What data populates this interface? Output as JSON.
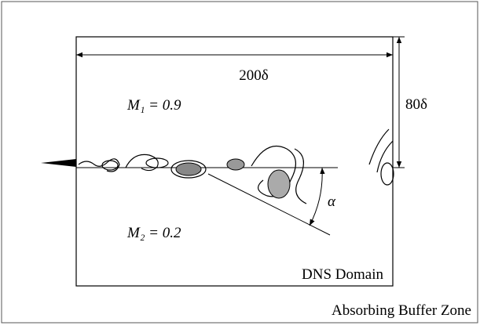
{
  "labels": {
    "length": "200δ",
    "height": "80δ",
    "upper_mach": "M₁ = 0.9",
    "lower_mach": "M₂ = 0.2",
    "angle": "α",
    "domain": "DNS Domain",
    "buffer": "Absorbing Buffer Zone"
  }
}
